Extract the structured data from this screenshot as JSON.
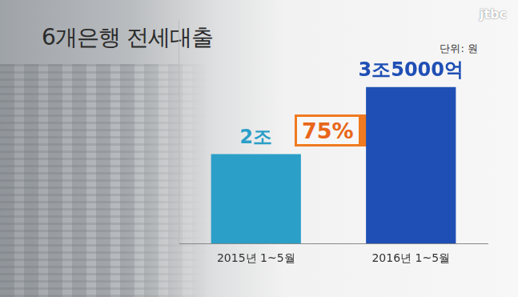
{
  "chart_data": {
    "type": "bar",
    "title": "6개은행 전세대출",
    "unit_label": "단위: 원",
    "watermark": "jtbc",
    "categories": [
      "2015년 1~5월",
      "2016년 1~5월"
    ],
    "values": [
      2000000000000,
      3500000000000
    ],
    "value_labels": [
      "2조",
      "3조5000억"
    ],
    "colors": [
      "#2b9fc8",
      "#1f4fb5"
    ],
    "ylim": [
      0,
      5000000000000
    ],
    "annotation": "75%",
    "grid": false,
    "tick_labels": "x",
    "data_labels": true
  }
}
